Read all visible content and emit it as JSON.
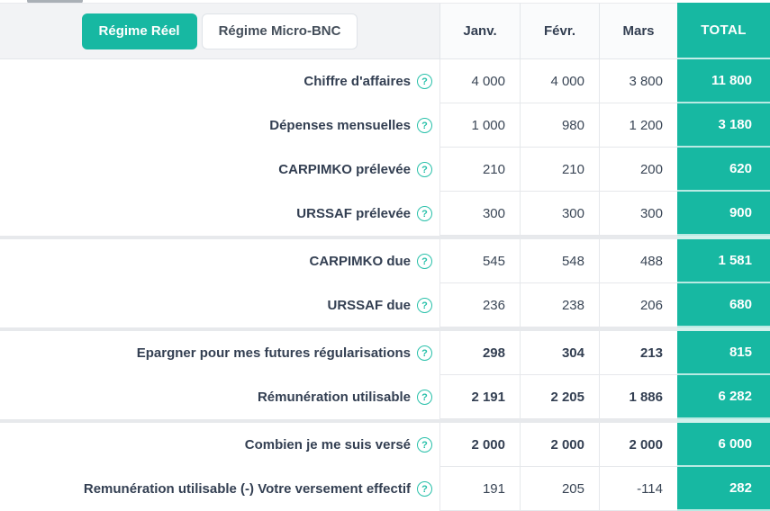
{
  "toggle": {
    "active_label": "Régime Réel",
    "inactive_label": "Régime Micro-BNC"
  },
  "columns": [
    "Janv.",
    "Févr.",
    "Mars",
    "TOTAL"
  ],
  "help_glyph": "?",
  "colors": {
    "accent_teal": "#17b8a2",
    "dark_text": "#333f52",
    "header_bg": "#f2f3f5",
    "cell_border": "#e6e8eb",
    "group_band": "#e7e9ec"
  },
  "rows": [
    {
      "label": "Chiffre d'affaires",
      "values": [
        "4 000",
        "4 000",
        "3 800"
      ],
      "total": "11 800",
      "bold": false,
      "group_end": false
    },
    {
      "label": "Dépenses mensuelles",
      "values": [
        "1 000",
        "980",
        "1 200"
      ],
      "total": "3 180",
      "bold": false,
      "group_end": false
    },
    {
      "label": "CARPIMKO prélevée",
      "values": [
        "210",
        "210",
        "200"
      ],
      "total": "620",
      "bold": false,
      "group_end": false
    },
    {
      "label": "URSSAF prélevée",
      "values": [
        "300",
        "300",
        "300"
      ],
      "total": "900",
      "bold": false,
      "group_end": true
    },
    {
      "label": "CARPIMKO due",
      "values": [
        "545",
        "548",
        "488"
      ],
      "total": "1 581",
      "bold": false,
      "group_end": false
    },
    {
      "label": "URSSAF due",
      "values": [
        "236",
        "238",
        "206"
      ],
      "total": "680",
      "bold": false,
      "group_end": true
    },
    {
      "label": "Epargner pour mes futures régularisations",
      "values": [
        "298",
        "304",
        "213"
      ],
      "total": "815",
      "bold": true,
      "group_end": false
    },
    {
      "label": "Rémunération utilisable",
      "values": [
        "2 191",
        "2 205",
        "1 886"
      ],
      "total": "6 282",
      "bold": true,
      "group_end": true
    },
    {
      "label": "Combien je me suis versé",
      "values": [
        "2 000",
        "2 000",
        "2 000"
      ],
      "total": "6 000",
      "bold": true,
      "group_end": false
    },
    {
      "label": "Remunération utilisable (-) Votre versement effectif",
      "values": [
        "191",
        "205",
        "-114"
      ],
      "total": "282",
      "bold": false,
      "group_end": false
    }
  ]
}
